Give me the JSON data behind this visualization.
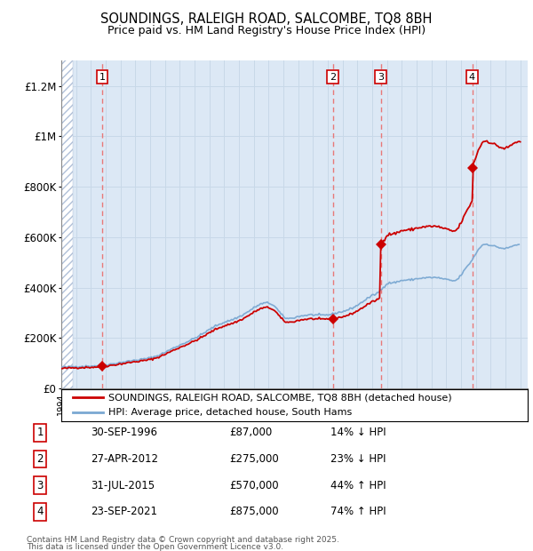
{
  "title": "SOUNDINGS, RALEIGH ROAD, SALCOMBE, TQ8 8BH",
  "subtitle": "Price paid vs. HM Land Registry's House Price Index (HPI)",
  "sale_dates_decimal": [
    1996.75,
    2012.333,
    2015.583,
    2021.75
  ],
  "sale_prices": [
    87000,
    275000,
    570000,
    875000
  ],
  "sale_labels": [
    "1",
    "2",
    "3",
    "4"
  ],
  "sale_rows": [
    [
      "1",
      "30-SEP-1996",
      "£87,000",
      "14% ↓ HPI"
    ],
    [
      "2",
      "27-APR-2012",
      "£275,000",
      "23% ↓ HPI"
    ],
    [
      "3",
      "31-JUL-2015",
      "£570,000",
      "44% ↑ HPI"
    ],
    [
      "4",
      "23-SEP-2021",
      "£875,000",
      "74% ↑ HPI"
    ]
  ],
  "legend_property": "SOUNDINGS, RALEIGH ROAD, SALCOMBE, TQ8 8BH (detached house)",
  "legend_hpi": "HPI: Average price, detached house, South Hams",
  "footnote1": "Contains HM Land Registry data © Crown copyright and database right 2025.",
  "footnote2": "This data is licensed under the Open Government Licence v3.0.",
  "ylim": [
    0,
    1300000
  ],
  "yticks": [
    0,
    200000,
    400000,
    600000,
    800000,
    1000000,
    1200000
  ],
  "ytick_labels": [
    "£0",
    "£200K",
    "£400K",
    "£600K",
    "£800K",
    "£1M",
    "£1.2M"
  ],
  "xlim_start": 1994.0,
  "xlim_end": 2025.5,
  "hpi_color": "#7aa8d2",
  "property_color": "#cc0000",
  "dashed_color": "#e87878",
  "grid_color": "#c8d8e8",
  "bg_color": "#dce8f5",
  "hatch_color": "#b0c0d8"
}
